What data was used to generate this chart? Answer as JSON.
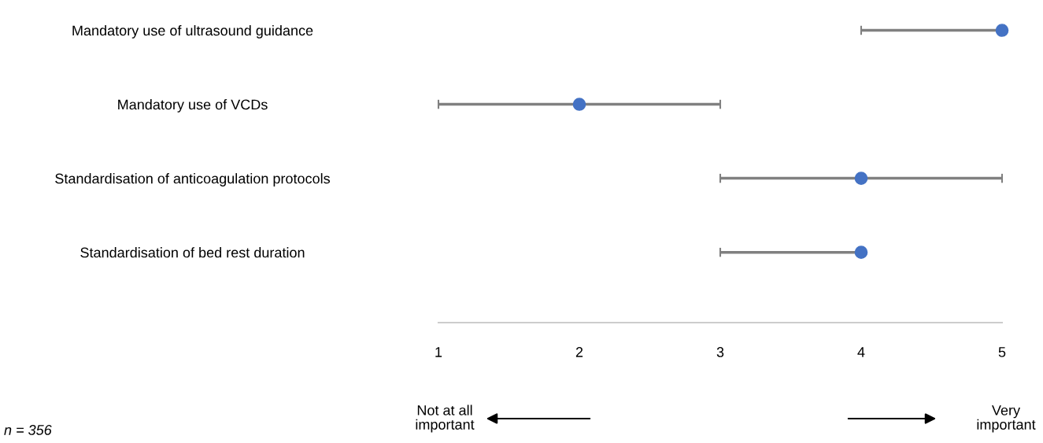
{
  "chart_data": {
    "type": "scatter",
    "orientation": "horizontal",
    "categories": [
      "Mandatory use of ultrasound guidance",
      "Mandatory use of VCDs",
      "Standardisation of anticoagulation protocols",
      "Standardisation of bed rest duration"
    ],
    "series": [
      {
        "color": "#4472c4",
        "values": [
          5,
          2,
          4,
          4
        ],
        "errors": [
          [
            4,
            5
          ],
          [
            1,
            3
          ],
          [
            3,
            5
          ],
          [
            3,
            4
          ]
        ]
      }
    ],
    "xlim": [
      1,
      5
    ],
    "xticks": [
      1,
      2,
      3,
      4,
      5
    ],
    "grid": false,
    "marker": "circle",
    "annotations": [
      "Not at all\nimportant",
      "Very\nimportant",
      "n = 356"
    ]
  }
}
